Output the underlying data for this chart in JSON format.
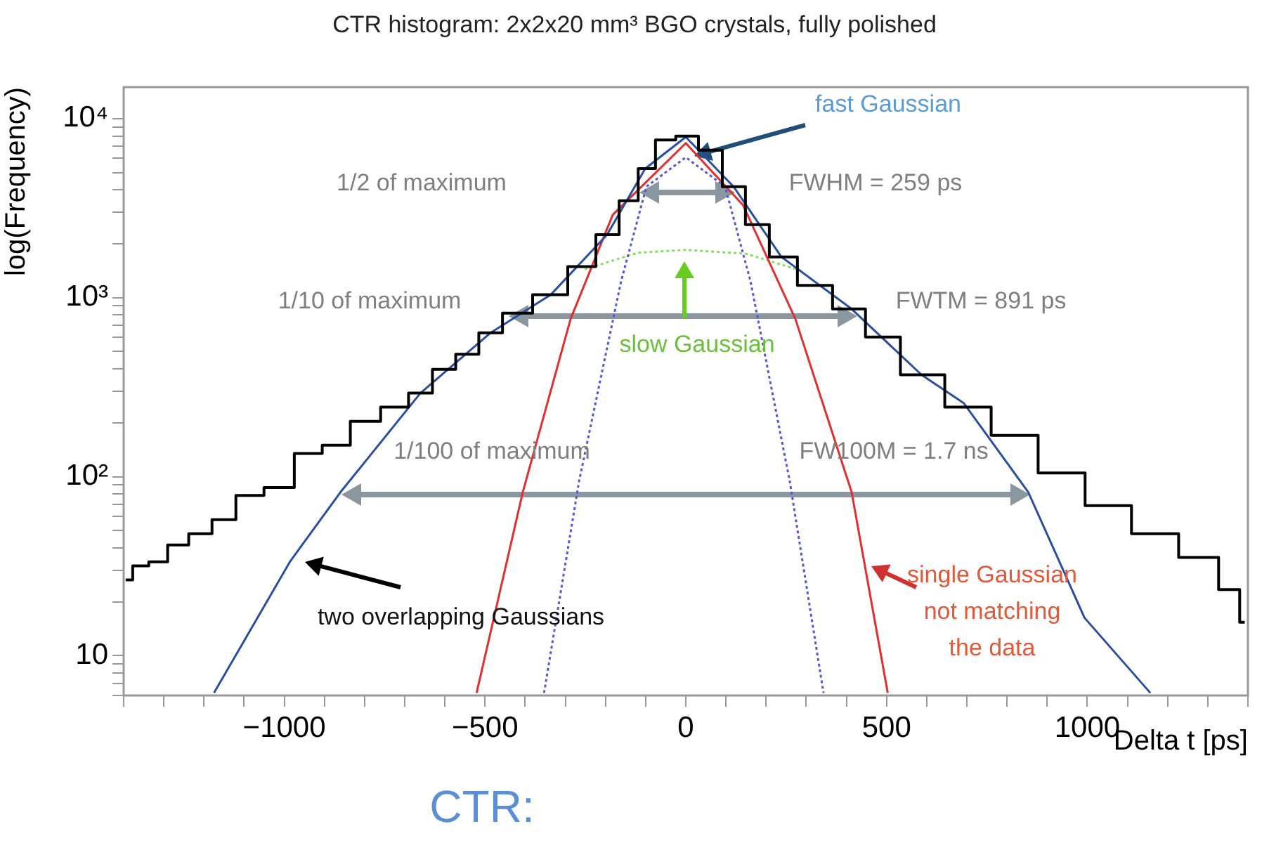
{
  "chart_data": {
    "type": "line",
    "title": "CTR histogram: 2x2x20 mm³ BGO crystals, fully polished",
    "xlabel": "Delta t [ps]",
    "ylabel": "log(Frequency)",
    "log": "y",
    "xlim": [
      -1400,
      1400
    ],
    "xticks": [
      {
        "value": -1400,
        "label": null
      },
      {
        "value": -1300,
        "label": null
      },
      {
        "value": -1200,
        "label": null
      },
      {
        "value": -1100,
        "label": null
      },
      {
        "value": -1000,
        "label": "−1000"
      },
      {
        "value": -900,
        "label": null
      },
      {
        "value": -800,
        "label": null
      },
      {
        "value": -700,
        "label": null
      },
      {
        "value": -600,
        "label": null
      },
      {
        "value": -500,
        "label": "−500"
      },
      {
        "value": -400,
        "label": null
      },
      {
        "value": -300,
        "label": null
      },
      {
        "value": -200,
        "label": null
      },
      {
        "value": -100,
        "label": null
      },
      0,
      {
        "value": 100,
        "label": null
      },
      {
        "value": 200,
        "label": null
      },
      {
        "value": 300,
        "label": null
      },
      {
        "value": 400,
        "label": null
      },
      500,
      {
        "value": 600,
        "label": null
      },
      {
        "value": 700,
        "label": null
      },
      {
        "value": 800,
        "label": null
      },
      {
        "value": 900,
        "label": null
      },
      1000,
      {
        "value": 1100,
        "label": null
      },
      {
        "value": 1200,
        "label": null
      },
      {
        "value": 1300,
        "label": null
      },
      {
        "value": 1400,
        "label": null
      }
    ],
    "ylim": [
      6,
      15000
    ],
    "yticks": [
      {
        "value": 6,
        "label": null
      },
      {
        "value": 7,
        "label": null
      },
      {
        "value": 8,
        "label": null
      },
      {
        "value": 9,
        "label": null
      },
      10,
      {
        "value": 20,
        "label": null
      },
      {
        "value": 30,
        "label": null
      },
      {
        "value": 40,
        "label": null
      },
      {
        "value": 50,
        "label": null
      },
      {
        "value": 60,
        "label": null
      },
      {
        "value": 70,
        "label": null
      },
      {
        "value": 80,
        "label": null
      },
      {
        "value": 90,
        "label": null
      },
      {
        "value": 100,
        "label": "10²"
      },
      {
        "value": 200,
        "label": null
      },
      {
        "value": 300,
        "label": null
      },
      {
        "value": 400,
        "label": null
      },
      {
        "value": 500,
        "label": null
      },
      {
        "value": 600,
        "label": null
      },
      {
        "value": 700,
        "label": null
      },
      {
        "value": 800,
        "label": null
      },
      {
        "value": 900,
        "label": null
      },
      {
        "value": 1000,
        "label": "10³"
      },
      {
        "value": 2000,
        "label": null
      },
      {
        "value": 3000,
        "label": null
      },
      {
        "value": 4000,
        "label": null
      },
      {
        "value": 5000,
        "label": null
      },
      {
        "value": 6000,
        "label": null
      },
      {
        "value": 7000,
        "label": null
      },
      {
        "value": 8000,
        "label": null
      },
      {
        "value": 9000,
        "label": null
      },
      {
        "value": 10000,
        "label": "10⁴"
      }
    ],
    "series": [
      {
        "type": "step",
        "color": "#000000",
        "x": [
          -1395,
          -1360,
          -1315,
          -1266,
          -1210,
          -1150,
          -1091,
          -1010,
          -940,
          -871,
          -800,
          -720,
          -661,
          -601,
          -545,
          -486,
          -427,
          -336,
          -252,
          -196,
          -136,
          -101,
          -50,
          0,
          63,
          119,
          178,
          238,
          318,
          413,
          482,
          587,
          703,
          818,
          937,
          1052,
          1168,
          1287,
          1367,
          1392
        ],
        "values": [
          26.5,
          31.8,
          33.5,
          41.6,
          48,
          57.6,
          78.6,
          87,
          135,
          150,
          204,
          245,
          293,
          398,
          483,
          637,
          820,
          1040,
          1490,
          2250,
          3480,
          5260,
          7600,
          7980,
          6670,
          4170,
          2560,
          1690,
          1170,
          865,
          603,
          371,
          245,
          170,
          105,
          69,
          48,
          35.4,
          23.4,
          15.4
        ]
      },
      {
        "color": "#2b4fa0",
        "line_style": "solid",
        "x": [
          -1175,
          -986,
          -860,
          -661,
          -486,
          -336,
          -196,
          -101,
          0,
          119,
          238,
          413,
          587,
          692,
          853,
          993,
          1157
        ],
        "values": [
          6.2,
          33.5,
          82,
          293,
          637,
          1040,
          2250,
          5260,
          7900,
          4170,
          1690,
          865,
          371,
          258,
          82,
          16.3,
          6.2
        ]
      },
      {
        "color": "#e03030",
        "line_style": "solid",
        "x": [
          -521,
          -406,
          -287,
          -182,
          0,
          143,
          273,
          413,
          503
        ],
        "values": [
          6.2,
          82,
          760,
          2900,
          7300,
          3280,
          760,
          82,
          6.2
        ]
      },
      {
        "color": "#5555dd",
        "line_style": "dotted",
        "x": [
          -353,
          -266,
          -161,
          -98,
          0,
          98,
          161,
          259,
          343
        ],
        "values": [
          6.2,
          94,
          1240,
          4170,
          6080,
          4170,
          1240,
          94,
          6.2
        ]
      },
      {
        "color": "#88dd66",
        "line_style": "dotted",
        "x": [
          -252,
          -120,
          0,
          150,
          294
        ],
        "values": [
          1440,
          1780,
          1850,
          1760,
          1400
        ]
      }
    ],
    "annotations": [
      "fast Gaussian",
      "1/2 of maximum",
      "FWHM = 259 ps",
      "1/10 of maximum",
      "FWTM = 891 ps",
      "slow Gaussian",
      "1/100 of maximum",
      "FW100M = 1.7 ns",
      "two overlapping Gaussians",
      "single Gaussian\nnot matching\nthe data",
      "CTR:"
    ]
  }
}
